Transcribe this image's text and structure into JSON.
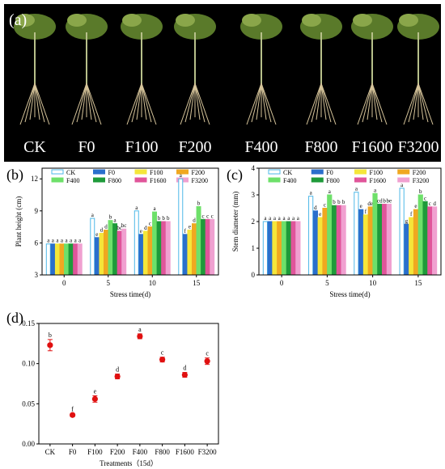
{
  "panel_a": {
    "label": "(a)",
    "plants": [
      "CK",
      "F0",
      "F100",
      "F200",
      "F400",
      "F800",
      "F1600",
      "F3200"
    ]
  },
  "chart_data": [
    {
      "panel": "(b)",
      "type": "bar",
      "title": "",
      "xlabel": "Stress time(d)",
      "ylabel": "Plant height (cm)",
      "ylim": [
        3,
        13
      ],
      "yticks": [
        3,
        6,
        9,
        12
      ],
      "categories": [
        "0",
        "5",
        "10",
        "15"
      ],
      "legend_position": "top",
      "series": [
        {
          "name": "CK",
          "color": "#4db8e8",
          "hollow": true,
          "values": [
            5.9,
            8.3,
            9.0,
            12.0
          ],
          "labels": [
            "a",
            "a",
            "a",
            "a"
          ]
        },
        {
          "name": "F0",
          "color": "#2a6fcc",
          "values": [
            5.9,
            6.5,
            6.8,
            6.8
          ],
          "labels": [
            "a",
            "e",
            "e",
            "f"
          ]
        },
        {
          "name": "F100",
          "color": "#f5e63a",
          "values": [
            5.9,
            6.9,
            7.1,
            7.2
          ],
          "labels": [
            "a",
            "d",
            "d",
            "e"
          ]
        },
        {
          "name": "F200",
          "color": "#f0a820",
          "values": [
            5.9,
            7.2,
            7.5,
            7.8
          ],
          "labels": [
            "a",
            "d",
            "c",
            "d"
          ]
        },
        {
          "name": "F400",
          "color": "#6ee06a",
          "values": [
            5.9,
            8.1,
            8.9,
            9.4
          ],
          "labels": [
            "a",
            "b",
            "a",
            "b"
          ]
        },
        {
          "name": "F800",
          "color": "#1e9a3a",
          "values": [
            5.9,
            7.8,
            8.0,
            8.2
          ],
          "labels": [
            "a",
            "a",
            "b",
            "c"
          ]
        },
        {
          "name": "F1600",
          "color": "#e0559a",
          "values": [
            5.9,
            7.1,
            8.0,
            8.2
          ],
          "labels": [
            "a",
            "bc",
            "b",
            "c"
          ]
        },
        {
          "name": "F3200",
          "color": "#f0a0d0",
          "values": [
            5.9,
            7.3,
            8.0,
            8.2
          ],
          "labels": [
            "a",
            "bc",
            "b",
            "c"
          ]
        }
      ]
    },
    {
      "panel": "(c)",
      "type": "bar",
      "title": "",
      "xlabel": "Stress time(d)",
      "ylabel": "Stem diameter (mm)",
      "ylim": [
        0,
        4
      ],
      "yticks": [
        0,
        1,
        2,
        3,
        4
      ],
      "categories": [
        "0",
        "5",
        "10",
        "15"
      ],
      "legend_position": "top",
      "series": [
        {
          "name": "CK",
          "color": "#4db8e8",
          "hollow": true,
          "values": [
            2.0,
            2.95,
            3.1,
            3.25
          ],
          "labels": [
            "a",
            "a",
            "a",
            "a"
          ]
        },
        {
          "name": "F0",
          "color": "#2a6fcc",
          "values": [
            2.0,
            2.4,
            2.45,
            1.9
          ],
          "labels": [
            "a",
            "d",
            "e",
            "g"
          ]
        },
        {
          "name": "F100",
          "color": "#f5e63a",
          "values": [
            2.0,
            2.15,
            2.25,
            2.15
          ],
          "labels": [
            "a",
            "e",
            "f",
            "f"
          ]
        },
        {
          "name": "F200",
          "color": "#f0a820",
          "values": [
            2.0,
            2.5,
            2.55,
            2.45
          ],
          "labels": [
            "a",
            "c",
            "de",
            "e"
          ]
        },
        {
          "name": "F400",
          "color": "#6ee06a",
          "values": [
            2.0,
            3.0,
            3.05,
            3.0
          ],
          "labels": [
            "a",
            "a",
            "a",
            "b"
          ]
        },
        {
          "name": "F800",
          "color": "#1e9a3a",
          "values": [
            2.0,
            2.6,
            2.65,
            2.75
          ],
          "labels": [
            "a",
            "b",
            "cd",
            "c"
          ]
        },
        {
          "name": "F1600",
          "color": "#e0559a",
          "values": [
            2.0,
            2.6,
            2.65,
            2.55
          ],
          "labels": [
            "a",
            "b",
            "b",
            "c"
          ]
        },
        {
          "name": "F3200",
          "color": "#f0a0d0",
          "values": [
            2.0,
            2.6,
            2.65,
            2.55
          ],
          "labels": [
            "a",
            "b",
            "be",
            "d"
          ]
        }
      ]
    },
    {
      "panel": "(d)",
      "type": "scatter",
      "title": "",
      "xlabel": "Treatments（15d）",
      "ylabel": "",
      "ylim": [
        0,
        0.15
      ],
      "yticks": [
        "0.00",
        "0.05",
        "0.10",
        "0.15"
      ],
      "categories": [
        "CK",
        "F0",
        "F100",
        "F200",
        "F400",
        "F800",
        "F1600",
        "F3200"
      ],
      "color": "#e01010",
      "values": [
        0.123,
        0.036,
        0.056,
        0.084,
        0.134,
        0.105,
        0.086,
        0.103
      ],
      "errors": [
        0.007,
        0.002,
        0.004,
        0.003,
        0.003,
        0.003,
        0.003,
        0.004
      ],
      "labels": [
        "b",
        "f",
        "e",
        "d",
        "a",
        "c",
        "d",
        "c"
      ]
    }
  ]
}
